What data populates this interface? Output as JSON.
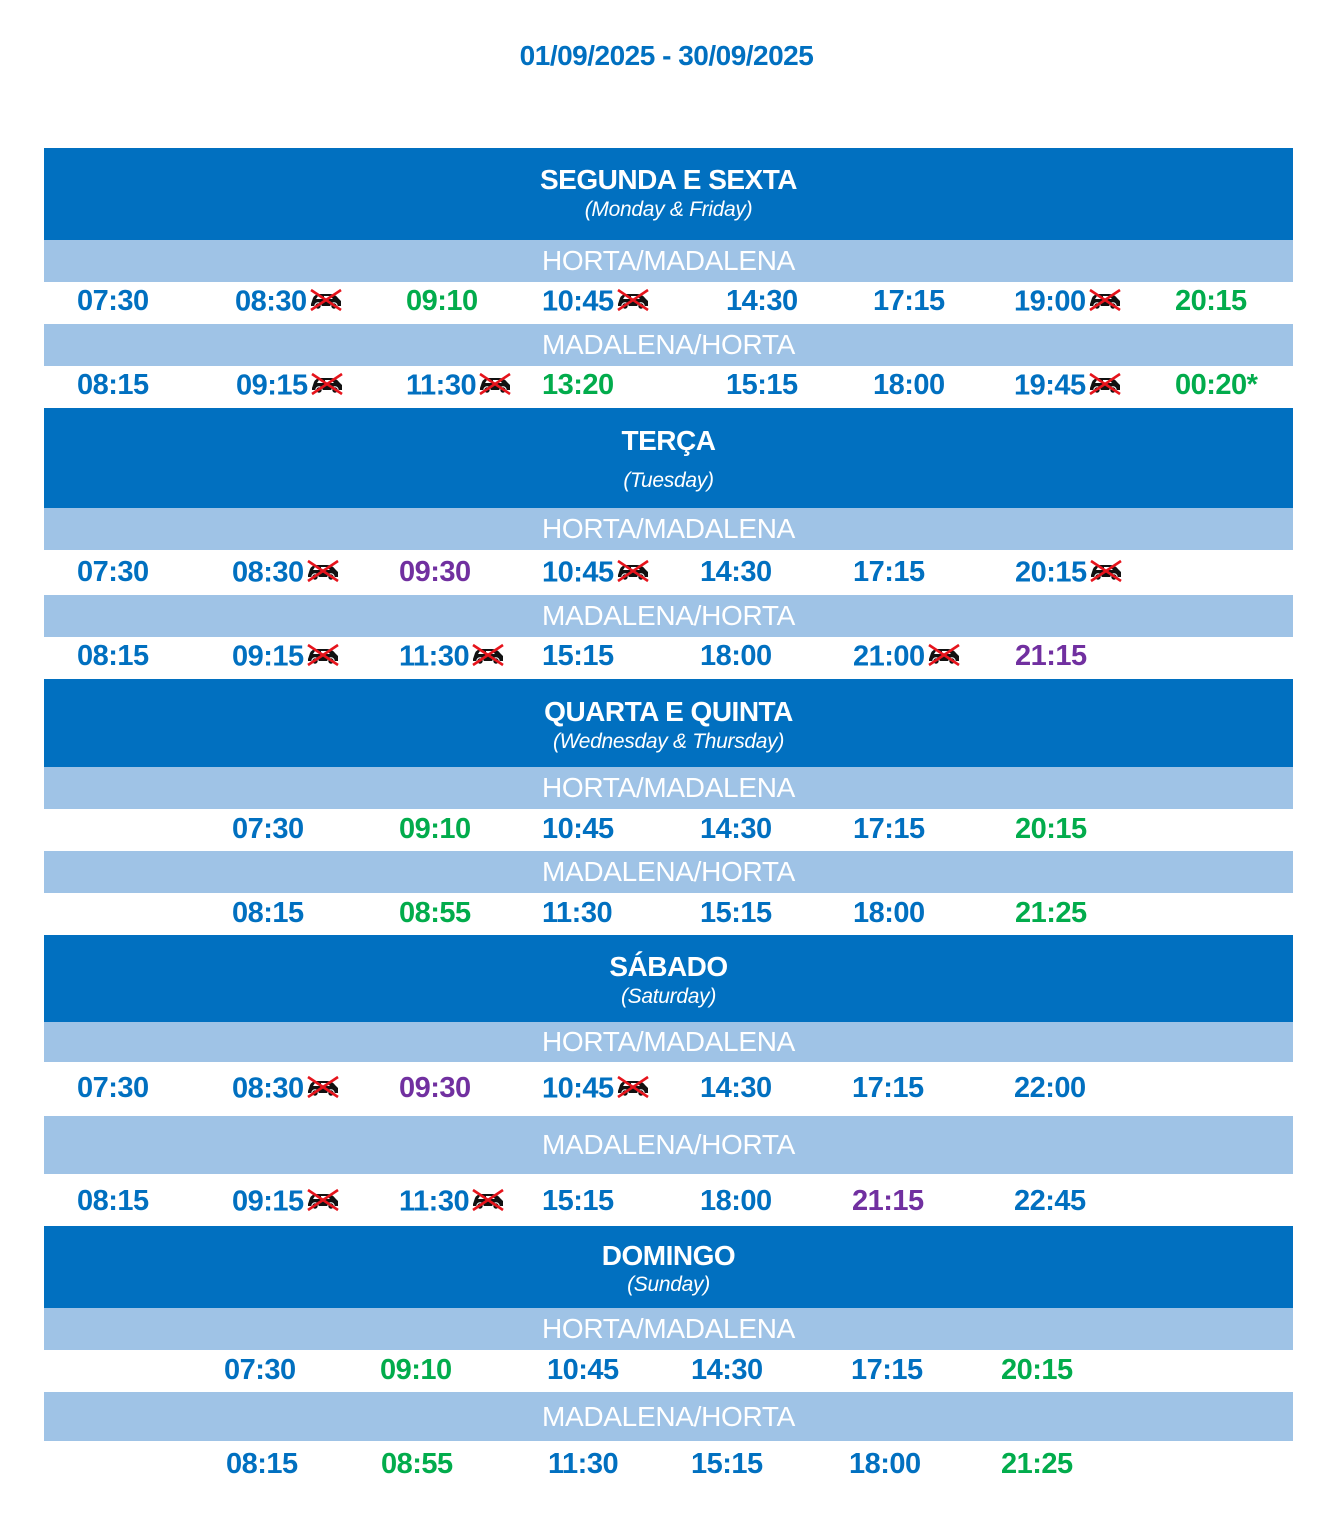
{
  "date_range": "01/09/2025 - 30/09/2025",
  "colors": {
    "header": "#0170c0",
    "route_band": "#9fc3e6",
    "regular": "#0170c0",
    "green": "#02ac4c",
    "purple": "#7130a0"
  },
  "icons": {
    "no_vehicle": "no-car-icon"
  },
  "days": [
    {
      "title": "SEGUNDA E SEXTA",
      "subtitle": "(Monday & Friday)",
      "routes": [
        {
          "name": "HORTA/MADALENA",
          "departures": [
            {
              "time": "07:30",
              "color": "blue",
              "no_vehicles": false
            },
            {
              "time": "08:30",
              "color": "blue",
              "no_vehicles": true
            },
            {
              "time": "09:10",
              "color": "green",
              "no_vehicles": false
            },
            {
              "time": "10:45",
              "color": "blue",
              "no_vehicles": true
            },
            {
              "time": "14:30",
              "color": "blue",
              "no_vehicles": false
            },
            {
              "time": "17:15",
              "color": "blue",
              "no_vehicles": false
            },
            {
              "time": "19:00",
              "color": "blue",
              "no_vehicles": true
            },
            {
              "time": "20:15",
              "color": "green",
              "no_vehicles": false
            }
          ]
        },
        {
          "name": "MADALENA/HORTA",
          "departures": [
            {
              "time": "08:15",
              "color": "blue",
              "no_vehicles": false
            },
            {
              "time": "09:15",
              "color": "blue",
              "no_vehicles": true
            },
            {
              "time": "11:30",
              "color": "blue",
              "no_vehicles": true
            },
            {
              "time": "13:20",
              "color": "green",
              "no_vehicles": false
            },
            {
              "time": "15:15",
              "color": "blue",
              "no_vehicles": false
            },
            {
              "time": "18:00",
              "color": "blue",
              "no_vehicles": false
            },
            {
              "time": "19:45",
              "color": "blue",
              "no_vehicles": true
            },
            {
              "time": "00:20*",
              "color": "green",
              "no_vehicles": false
            }
          ]
        }
      ]
    },
    {
      "title": "TERÇA",
      "subtitle": "(Tuesday)",
      "routes": [
        {
          "name": "HORTA/MADALENA",
          "departures": [
            {
              "time": "07:30",
              "color": "blue",
              "no_vehicles": false
            },
            {
              "time": "08:30",
              "color": "blue",
              "no_vehicles": true
            },
            {
              "time": "09:30",
              "color": "purple",
              "no_vehicles": false
            },
            {
              "time": "10:45",
              "color": "blue",
              "no_vehicles": true
            },
            {
              "time": "14:30",
              "color": "blue",
              "no_vehicles": false
            },
            {
              "time": "17:15",
              "color": "blue",
              "no_vehicles": false
            },
            {
              "time": "20:15",
              "color": "blue",
              "no_vehicles": true
            }
          ]
        },
        {
          "name": "MADALENA/HORTA",
          "departures": [
            {
              "time": "08:15",
              "color": "blue",
              "no_vehicles": false
            },
            {
              "time": "09:15",
              "color": "blue",
              "no_vehicles": true
            },
            {
              "time": "11:30",
              "color": "blue",
              "no_vehicles": true
            },
            {
              "time": "15:15",
              "color": "blue",
              "no_vehicles": false
            },
            {
              "time": "18:00",
              "color": "blue",
              "no_vehicles": false
            },
            {
              "time": "21:00",
              "color": "blue",
              "no_vehicles": true
            },
            {
              "time": "21:15",
              "color": "purple",
              "no_vehicles": false
            }
          ]
        }
      ]
    },
    {
      "title": "QUARTA E QUINTA",
      "subtitle": "(Wednesday & Thursday)",
      "routes": [
        {
          "name": "HORTA/MADALENA",
          "departures": [
            {
              "time": "07:30",
              "color": "blue",
              "no_vehicles": false
            },
            {
              "time": "09:10",
              "color": "green",
              "no_vehicles": false
            },
            {
              "time": "10:45",
              "color": "blue",
              "no_vehicles": false
            },
            {
              "time": "14:30",
              "color": "blue",
              "no_vehicles": false
            },
            {
              "time": "17:15",
              "color": "blue",
              "no_vehicles": false
            },
            {
              "time": "20:15",
              "color": "green",
              "no_vehicles": false
            }
          ]
        },
        {
          "name": "MADALENA/HORTA",
          "departures": [
            {
              "time": "08:15",
              "color": "blue",
              "no_vehicles": false
            },
            {
              "time": "08:55",
              "color": "green",
              "no_vehicles": false
            },
            {
              "time": "11:30",
              "color": "blue",
              "no_vehicles": false
            },
            {
              "time": "15:15",
              "color": "blue",
              "no_vehicles": false
            },
            {
              "time": "18:00",
              "color": "blue",
              "no_vehicles": false
            },
            {
              "time": "21:25",
              "color": "green",
              "no_vehicles": false
            }
          ]
        }
      ]
    },
    {
      "title": "SÁBADO",
      "subtitle": "(Saturday)",
      "routes": [
        {
          "name": "HORTA/MADALENA",
          "departures": [
            {
              "time": "07:30",
              "color": "blue",
              "no_vehicles": false
            },
            {
              "time": "08:30",
              "color": "blue",
              "no_vehicles": true
            },
            {
              "time": "09:30",
              "color": "purple",
              "no_vehicles": false
            },
            {
              "time": "10:45",
              "color": "blue",
              "no_vehicles": true
            },
            {
              "time": "14:30",
              "color": "blue",
              "no_vehicles": false
            },
            {
              "time": "17:15",
              "color": "blue",
              "no_vehicles": false
            },
            {
              "time": "22:00",
              "color": "blue",
              "no_vehicles": false
            }
          ]
        },
        {
          "name": "MADALENA/HORTA",
          "departures": [
            {
              "time": "08:15",
              "color": "blue",
              "no_vehicles": false
            },
            {
              "time": "09:15",
              "color": "blue",
              "no_vehicles": true
            },
            {
              "time": "11:30",
              "color": "blue",
              "no_vehicles": true
            },
            {
              "time": "15:15",
              "color": "blue",
              "no_vehicles": false
            },
            {
              "time": "18:00",
              "color": "blue",
              "no_vehicles": false
            },
            {
              "time": "21:15",
              "color": "purple",
              "no_vehicles": false
            },
            {
              "time": "22:45",
              "color": "blue",
              "no_vehicles": false
            }
          ]
        }
      ]
    },
    {
      "title": "DOMINGO",
      "subtitle": "(Sunday)",
      "routes": [
        {
          "name": "HORTA/MADALENA",
          "departures": [
            {
              "time": "07:30",
              "color": "blue",
              "no_vehicles": false
            },
            {
              "time": "09:10",
              "color": "green",
              "no_vehicles": false
            },
            {
              "time": "10:45",
              "color": "blue",
              "no_vehicles": false
            },
            {
              "time": "14:30",
              "color": "blue",
              "no_vehicles": false
            },
            {
              "time": "17:15",
              "color": "blue",
              "no_vehicles": false
            },
            {
              "time": "20:15",
              "color": "green",
              "no_vehicles": false
            }
          ]
        },
        {
          "name": "MADALENA/HORTA",
          "departures": [
            {
              "time": "08:15",
              "color": "blue",
              "no_vehicles": false
            },
            {
              "time": "08:55",
              "color": "green",
              "no_vehicles": false
            },
            {
              "time": "11:30",
              "color": "blue",
              "no_vehicles": false
            },
            {
              "time": "15:15",
              "color": "blue",
              "no_vehicles": false
            },
            {
              "time": "18:00",
              "color": "blue",
              "no_vehicles": false
            },
            {
              "time": "21:25",
              "color": "green",
              "no_vehicles": false
            }
          ]
        }
      ]
    }
  ]
}
